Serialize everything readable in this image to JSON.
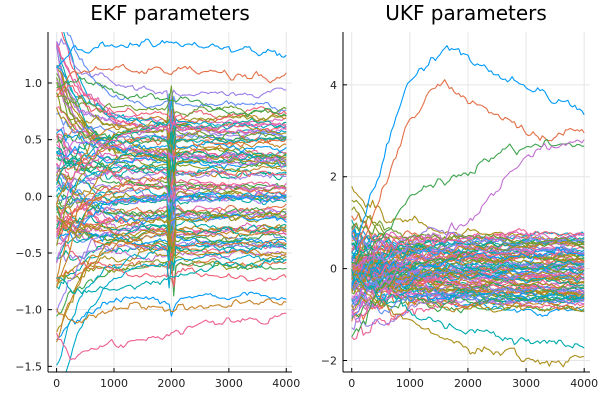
{
  "chart_data": [
    {
      "type": "line",
      "title": "EKF parameters",
      "xlabel": "",
      "ylabel": "",
      "xlim": [
        -150,
        4100
      ],
      "ylim": [
        -1.55,
        1.45
      ],
      "xticks": [
        0,
        1000,
        2000,
        3000,
        4000
      ],
      "xtick_labels": [
        "0",
        "1000",
        "2000",
        "3000",
        "4000"
      ],
      "yticks": [
        -1.5,
        -1.0,
        -0.5,
        0.0,
        0.5,
        1.0
      ],
      "ytick_labels": [
        "−1.5",
        "−1.0",
        "−0.5",
        "0.0",
        "0.5",
        "1.0"
      ],
      "grid": true,
      "legend": "none",
      "palette": [
        "#009AFA",
        "#E36F47",
        "#3EA44E",
        "#C371D2",
        "#AC8E18",
        "#00AAAE",
        "#ED5E93",
        "#C68225",
        "#00A98D",
        "#8E971E",
        "#00A9CD",
        "#9B7FE9",
        "#618DF6",
        "#F05F73",
        "#DD64B5",
        "#6B9E32"
      ],
      "series_count": 96,
      "x": [
        0,
        300,
        1000,
        2000,
        3000,
        4000
      ],
      "sample_series": [
        {
          "values": [
            1.1,
            1.28,
            1.33,
            1.32,
            1.29,
            1.26
          ]
        },
        {
          "values": [
            0.9,
            1.12,
            1.13,
            1.1,
            1.08,
            1.07
          ]
        },
        {
          "values": [
            1.0,
            1.05,
            0.95,
            0.85,
            0.75,
            0.7
          ]
        },
        {
          "values": [
            0.2,
            0.5,
            0.42,
            0.35,
            0.3,
            0.28
          ]
        },
        {
          "values": [
            -0.2,
            -0.3,
            -0.25,
            -0.2,
            -0.18,
            -0.16
          ]
        },
        {
          "values": [
            -0.7,
            -0.9,
            -0.82,
            -0.72,
            -0.62,
            -0.56
          ]
        },
        {
          "values": [
            -1.2,
            -1.42,
            -1.3,
            -1.2,
            -1.1,
            -1.05
          ]
        },
        {
          "values": [
            -1.0,
            -1.1,
            -1.0,
            -0.98,
            -0.95,
            -0.92
          ]
        }
      ]
    },
    {
      "type": "line",
      "title": "UKF parameters",
      "xlabel": "",
      "ylabel": "",
      "xlim": [
        -150,
        4100
      ],
      "ylim": [
        -2.25,
        5.15
      ],
      "xticks": [
        0,
        1000,
        2000,
        3000,
        4000
      ],
      "xtick_labels": [
        "0",
        "1000",
        "2000",
        "3000",
        "4000"
      ],
      "yticks": [
        -2,
        0,
        2,
        4
      ],
      "ytick_labels": [
        "−2",
        "0",
        "2",
        "4"
      ],
      "grid": true,
      "legend": "none",
      "palette": [
        "#009AFA",
        "#E36F47",
        "#3EA44E",
        "#C371D2",
        "#AC8E18",
        "#00AAAE",
        "#ED5E93",
        "#C68225",
        "#00A98D",
        "#8E971E",
        "#00A9CD",
        "#9B7FE9",
        "#618DF6",
        "#F05F73",
        "#DD64B5",
        "#6B9E32"
      ],
      "series_count": 96,
      "x": [
        0,
        300,
        1000,
        1600,
        2000,
        3000,
        4000
      ],
      "sample_series": [
        {
          "values": [
            0.0,
            1.5,
            4.1,
            4.9,
            4.6,
            3.9,
            3.35
          ]
        },
        {
          "values": [
            0.0,
            1.0,
            3.3,
            4.0,
            3.6,
            3.1,
            2.85
          ]
        },
        {
          "values": [
            0.0,
            0.5,
            1.4,
            2.1,
            2.2,
            2.7,
            2.6
          ]
        },
        {
          "values": [
            0.0,
            0.2,
            0.5,
            0.6,
            1.0,
            2.5,
            2.75
          ]
        },
        {
          "values": [
            0.0,
            -0.6,
            -1.2,
            -1.5,
            -1.7,
            -1.9,
            -2.05
          ]
        },
        {
          "values": [
            0.0,
            -0.4,
            -0.9,
            -1.1,
            -1.3,
            -1.5,
            -1.65
          ]
        }
      ]
    }
  ]
}
